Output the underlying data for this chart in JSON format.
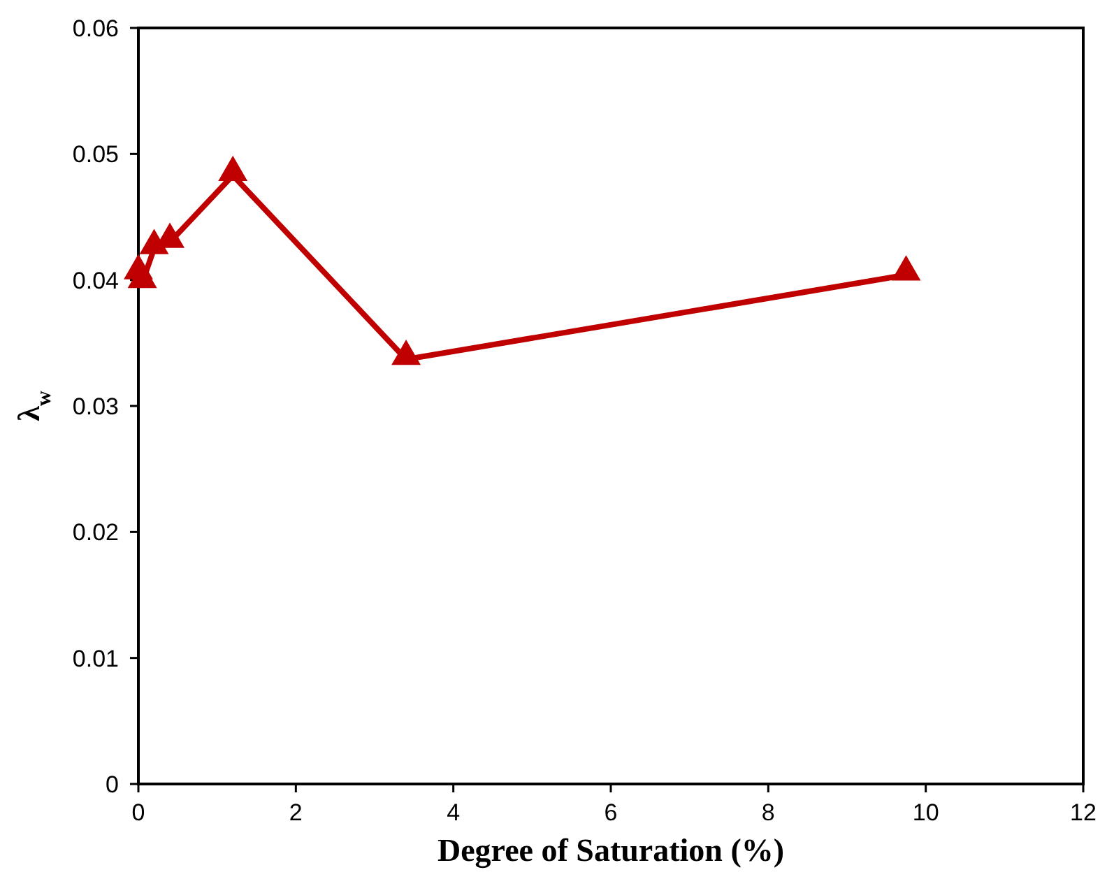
{
  "chart_data": {
    "type": "line",
    "xlabel": "Degree of Saturation (%)",
    "ylabel": "λ$_{w}$",
    "xlim": [
      0,
      12
    ],
    "xticks": [
      0,
      2,
      4,
      6,
      8,
      10,
      12
    ],
    "ylim": [
      0,
      0.06
    ],
    "yticks": [
      0,
      0.01,
      0.02,
      0.03,
      0.04,
      0.05,
      0.06
    ],
    "marker": "triangle",
    "grid": false,
    "series": [
      {
        "color": "#c00000",
        "x": [
          0,
          0.05,
          0.2,
          0.4,
          1.2,
          3.4,
          9.75
        ],
        "values": [
          0.0405,
          0.0398,
          0.0425,
          0.043,
          0.0483,
          0.0337,
          0.0404
        ]
      }
    ]
  }
}
